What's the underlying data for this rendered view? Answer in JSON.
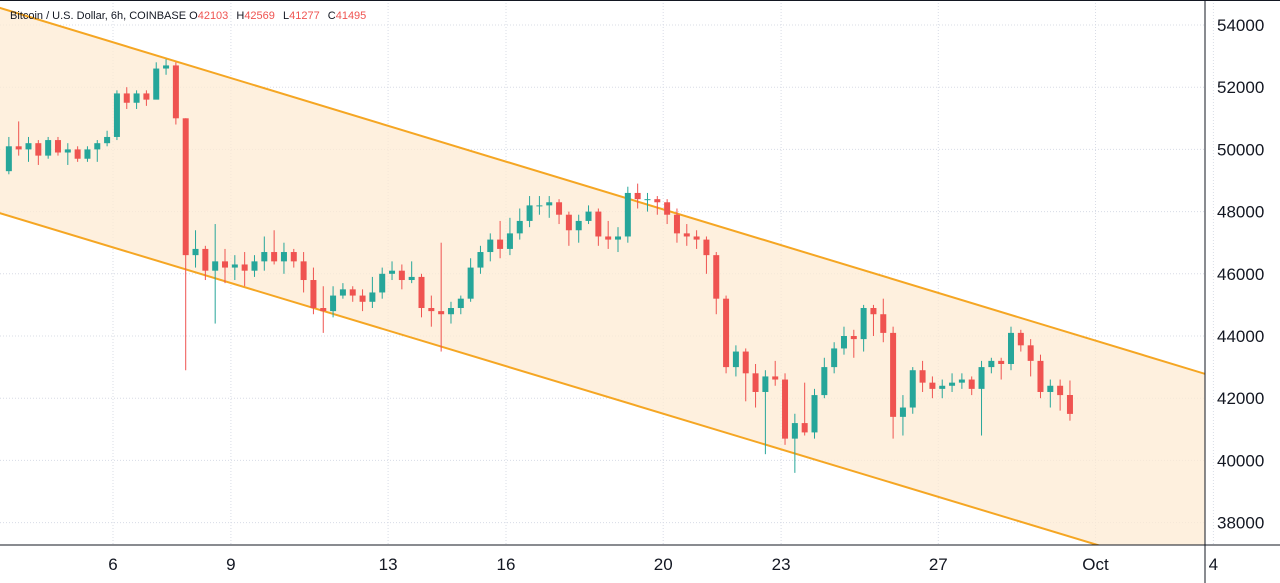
{
  "legend": {
    "title": "Bitcoin / U.S. Dollar, 6h, COINBASE",
    "o_label": "O",
    "o_value": "42103",
    "h_label": "H",
    "h_value": "42569",
    "l_label": "L",
    "l_value": "41277",
    "c_label": "C",
    "c_value": "41495"
  },
  "colors": {
    "up": "#26a69a",
    "down": "#ef5350",
    "channel_line": "#f5a623",
    "channel_fill": "#fdebd3",
    "grid": "#d8dce6",
    "axis_text": "#131722"
  },
  "chart_data": {
    "type": "candlestick",
    "title": "Bitcoin / U.S. Dollar, 6h, COINBASE",
    "x_unit": "day of month (Sep), 6h candles",
    "ylim": [
      37300,
      54700
    ],
    "xlim": [
      3.25,
      4.0
    ],
    "x_ticks": [
      {
        "day": 6,
        "label": "6"
      },
      {
        "day": 9,
        "label": "9"
      },
      {
        "day": 13,
        "label": "13"
      },
      {
        "day": 16,
        "label": "16"
      },
      {
        "day": 20,
        "label": "20"
      },
      {
        "day": 23,
        "label": "23"
      },
      {
        "day": 27,
        "label": "27"
      },
      {
        "day": 31,
        "label": "Oct"
      },
      {
        "day": 34,
        "label": "4"
      }
    ],
    "y_ticks": [
      38000,
      40000,
      42000,
      44000,
      46000,
      48000,
      50000,
      52000,
      54000
    ],
    "grid": true,
    "channel": {
      "upper": [
        [
          3.25,
          54500
        ],
        [
          34.0,
          42700
        ]
      ],
      "lower": [
        [
          3.25,
          47900
        ],
        [
          31.0,
          37300
        ]
      ]
    },
    "candles": [
      [
        49300,
        50100,
        50400,
        49200
      ],
      [
        50100,
        50000,
        50900,
        49800
      ],
      [
        50000,
        50200,
        50400,
        49600
      ],
      [
        50200,
        49800,
        50300,
        49500
      ],
      [
        49800,
        50300,
        50400,
        49700
      ],
      [
        50300,
        49900,
        50400,
        49800
      ],
      [
        49900,
        50000,
        50200,
        49500
      ],
      [
        50000,
        49700,
        50100,
        49600
      ],
      [
        49700,
        50000,
        50100,
        49600
      ],
      [
        50000,
        50200,
        50300,
        49600
      ],
      [
        50200,
        50400,
        50600,
        50100
      ],
      [
        50400,
        51800,
        51900,
        50300
      ],
      [
        51800,
        51500,
        52000,
        51300
      ],
      [
        51500,
        51800,
        51900,
        51300
      ],
      [
        51800,
        51600,
        51900,
        51400
      ],
      [
        51600,
        52600,
        52800,
        51800
      ],
      [
        52600,
        52700,
        52900,
        52400
      ],
      [
        52700,
        51000,
        52800,
        50800
      ],
      [
        51000,
        46600,
        51000,
        42900
      ],
      [
        46600,
        46800,
        47400,
        46200
      ],
      [
        46800,
        46100,
        46900,
        45800
      ],
      [
        46100,
        46400,
        47600,
        44400
      ],
      [
        46400,
        46200,
        46800,
        45700
      ],
      [
        46200,
        46300,
        46600,
        45800
      ],
      [
        46300,
        46100,
        46700,
        45600
      ],
      [
        46100,
        46400,
        46600,
        45900
      ],
      [
        46400,
        46700,
        47200,
        46100
      ],
      [
        46700,
        46400,
        47400,
        46300
      ],
      [
        46400,
        46700,
        47000,
        46000
      ],
      [
        46700,
        46400,
        46800,
        46200
      ],
      [
        46400,
        45800,
        46700,
        45400
      ],
      [
        45800,
        44900,
        46200,
        44700
      ],
      [
        44900,
        44800,
        45600,
        44100
      ],
      [
        44800,
        45300,
        45600,
        44600
      ],
      [
        45300,
        45500,
        45700,
        45200
      ],
      [
        45500,
        45300,
        45600,
        45100
      ],
      [
        45300,
        45100,
        45500,
        44800
      ],
      [
        45100,
        45400,
        45900,
        44900
      ],
      [
        45400,
        46000,
        46200,
        45200
      ],
      [
        46000,
        46100,
        46400,
        45800
      ],
      [
        46100,
        45800,
        46300,
        45500
      ],
      [
        45800,
        45900,
        46400,
        45700
      ],
      [
        45900,
        44900,
        46000,
        44600
      ],
      [
        44900,
        44800,
        45300,
        44300
      ],
      [
        44800,
        44700,
        47000,
        43500
      ],
      [
        44700,
        44900,
        45100,
        44400
      ],
      [
        44900,
        45200,
        45300,
        44700
      ],
      [
        45200,
        46200,
        46500,
        45100
      ],
      [
        46200,
        46700,
        46900,
        46000
      ],
      [
        46700,
        47100,
        47300,
        46400
      ],
      [
        47100,
        46800,
        47700,
        46500
      ],
      [
        46800,
        47300,
        47800,
        46600
      ],
      [
        47300,
        47700,
        48100,
        47100
      ],
      [
        47700,
        48200,
        48500,
        47500
      ],
      [
        48200,
        48200,
        48500,
        47900
      ],
      [
        48200,
        48300,
        48500,
        47800
      ],
      [
        48300,
        47900,
        48400,
        47600
      ],
      [
        47900,
        47400,
        48000,
        46900
      ],
      [
        47400,
        47700,
        47900,
        47000
      ],
      [
        47700,
        48000,
        48200,
        47600
      ],
      [
        48000,
        47200,
        48100,
        46900
      ],
      [
        47200,
        47100,
        47700,
        46800
      ],
      [
        47100,
        47200,
        47500,
        46700
      ],
      [
        47200,
        48600,
        48800,
        47000
      ],
      [
        48600,
        48400,
        48900,
        48100
      ],
      [
        48400,
        48400,
        48600,
        48000
      ],
      [
        48400,
        48300,
        48500,
        47900
      ],
      [
        48300,
        47900,
        48400,
        47600
      ],
      [
        47900,
        47300,
        48100,
        47000
      ],
      [
        47300,
        47200,
        47600,
        46900
      ],
      [
        47200,
        47100,
        47400,
        46800
      ],
      [
        47100,
        46600,
        47200,
        46000
      ],
      [
        46600,
        45200,
        46700,
        44700
      ],
      [
        45200,
        43000,
        45300,
        42800
      ],
      [
        43000,
        43500,
        43700,
        42700
      ],
      [
        43500,
        42800,
        43600,
        41900
      ],
      [
        42800,
        42200,
        43100,
        41700
      ],
      [
        42200,
        42700,
        42900,
        40200
      ],
      [
        42700,
        42600,
        43200,
        42400
      ],
      [
        42600,
        40700,
        42800,
        40500
      ],
      [
        40700,
        41200,
        41500,
        39600
      ],
      [
        41200,
        40900,
        42500,
        40800
      ],
      [
        40900,
        42100,
        42300,
        40700
      ],
      [
        42100,
        43000,
        43300,
        42000
      ],
      [
        43000,
        43600,
        43800,
        42800
      ],
      [
        43600,
        44000,
        44300,
        43400
      ],
      [
        44000,
        43900,
        44200,
        43300
      ],
      [
        43900,
        44900,
        45000,
        43500
      ],
      [
        44900,
        44700,
        45000,
        44000
      ],
      [
        44700,
        44100,
        45200,
        43800
      ],
      [
        44100,
        41400,
        44300,
        40700
      ],
      [
        41400,
        41700,
        42100,
        40800
      ],
      [
        41700,
        42900,
        43000,
        41500
      ],
      [
        42900,
        42500,
        43200,
        42200
      ],
      [
        42500,
        42300,
        42700,
        42000
      ],
      [
        42300,
        42400,
        42600,
        42000
      ],
      [
        42400,
        42500,
        42800,
        42200
      ],
      [
        42500,
        42600,
        42800,
        42300
      ],
      [
        42600,
        42300,
        42700,
        42100
      ],
      [
        42300,
        43000,
        43200,
        40800
      ],
      [
        43000,
        43200,
        43300,
        42800
      ],
      [
        43200,
        43100,
        43300,
        42600
      ],
      [
        43100,
        44100,
        44300,
        42900
      ],
      [
        44100,
        43700,
        44200,
        43500
      ],
      [
        43700,
        43200,
        43900,
        42700
      ],
      [
        43200,
        42200,
        43400,
        42000
      ],
      [
        42200,
        42400,
        42600,
        41700
      ],
      [
        42400,
        42100,
        42600,
        41600
      ],
      [
        42103,
        41495,
        42569,
        41277
      ]
    ]
  }
}
